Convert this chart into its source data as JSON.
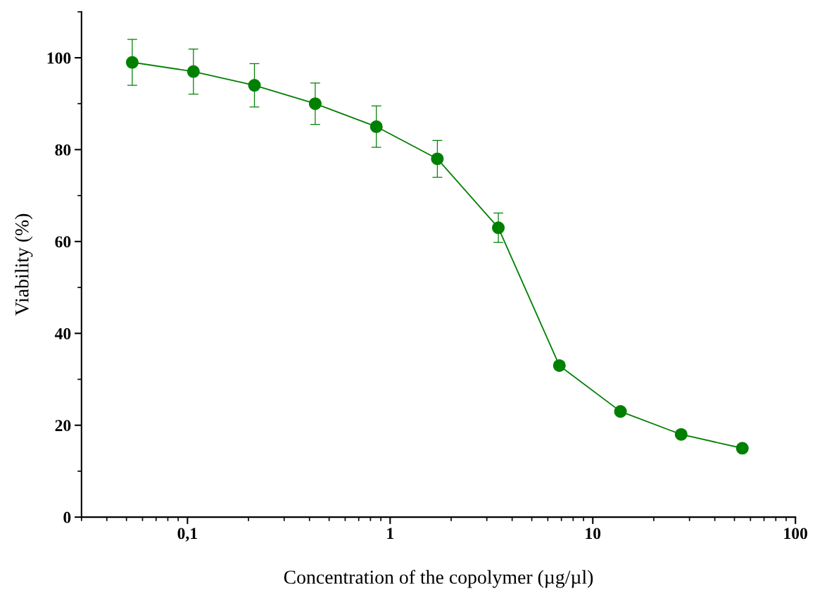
{
  "chart_data": {
    "type": "line",
    "xlabel": "Concentration of the copolymer (µg/µl)",
    "ylabel": "Viability (%)",
    "x": [
      0.0534,
      0.107,
      0.214,
      0.427,
      0.855,
      1.71,
      3.42,
      6.84,
      13.7,
      27.3,
      54.7
    ],
    "series": [
      {
        "color": "#008000",
        "values": [
          99,
          97,
          94,
          90,
          85,
          78,
          63,
          33,
          23,
          18,
          15
        ],
        "errors": [
          5,
          4.9,
          4.7,
          4.5,
          4.5,
          4,
          3.2,
          0.8,
          0.7,
          0.6,
          0.5
        ]
      }
    ],
    "log": "x",
    "xlim": [
      0.03,
      100
    ],
    "xticks": [
      {
        "value": 0.1,
        "label": "0,1"
      },
      1,
      10,
      100
    ],
    "ylim": [
      0,
      110
    ],
    "yticks": [
      0,
      20,
      40,
      60,
      80,
      100
    ],
    "grid": false,
    "legend": false,
    "marker": "circle",
    "line_style": "solid"
  }
}
